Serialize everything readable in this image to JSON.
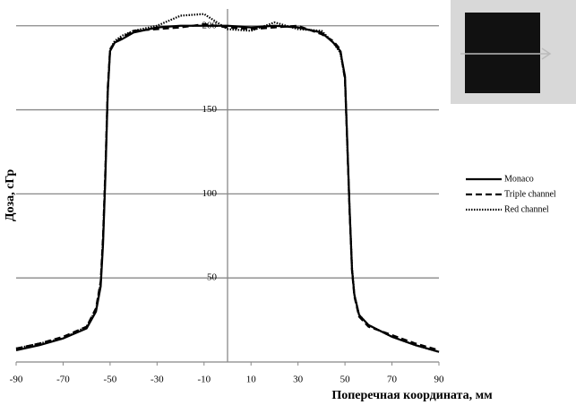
{
  "chart_data": {
    "type": "line",
    "x_label": "Поперечная координата, мм",
    "y_label": "Доза, сГр",
    "x": [
      -90,
      -80,
      -70,
      -60,
      -56,
      -54,
      -53,
      -52,
      -51,
      -50,
      -48,
      -45,
      -40,
      -30,
      -20,
      -10,
      0,
      10,
      20,
      30,
      40,
      45,
      48,
      50,
      51,
      52,
      53,
      54,
      56,
      60,
      70,
      80,
      90
    ],
    "series": [
      {
        "name": "Monaco",
        "color": "#000000",
        "style": "solid",
        "values": [
          7,
          10,
          14,
          20,
          30,
          45,
          70,
          110,
          160,
          185,
          190,
          192,
          196,
          199,
          200,
          200,
          200,
          199,
          200,
          199,
          196,
          190,
          185,
          170,
          130,
          90,
          55,
          40,
          28,
          22,
          15,
          10,
          6
        ]
      },
      {
        "name": "Triple channel",
        "color": "#000000",
        "style": "dashed",
        "values": [
          8,
          11,
          15,
          21,
          32,
          48,
          75,
          115,
          163,
          186,
          190,
          193,
          197,
          198,
          199,
          201,
          199,
          198,
          199,
          200,
          195,
          191,
          186,
          168,
          128,
          88,
          54,
          39,
          27,
          21,
          16,
          11,
          7
        ]
      },
      {
        "name": "Red channel",
        "color": "#000000",
        "style": "dotted",
        "values": [
          8,
          11,
          14,
          21,
          31,
          47,
          73,
          113,
          161,
          186,
          191,
          194,
          197,
          200,
          206,
          207,
          198,
          197,
          202,
          198,
          197,
          190,
          184,
          169,
          129,
          89,
          56,
          40,
          28,
          22,
          15,
          10,
          6
        ]
      }
    ],
    "xlim": [
      -90,
      90
    ],
    "xticks": [
      -90,
      -70,
      -50,
      -30,
      -10,
      10,
      30,
      50,
      70,
      90
    ],
    "ylim": [
      0,
      210
    ],
    "yticks": [
      50,
      100,
      150,
      200
    ],
    "grid": true,
    "legend": "right"
  }
}
